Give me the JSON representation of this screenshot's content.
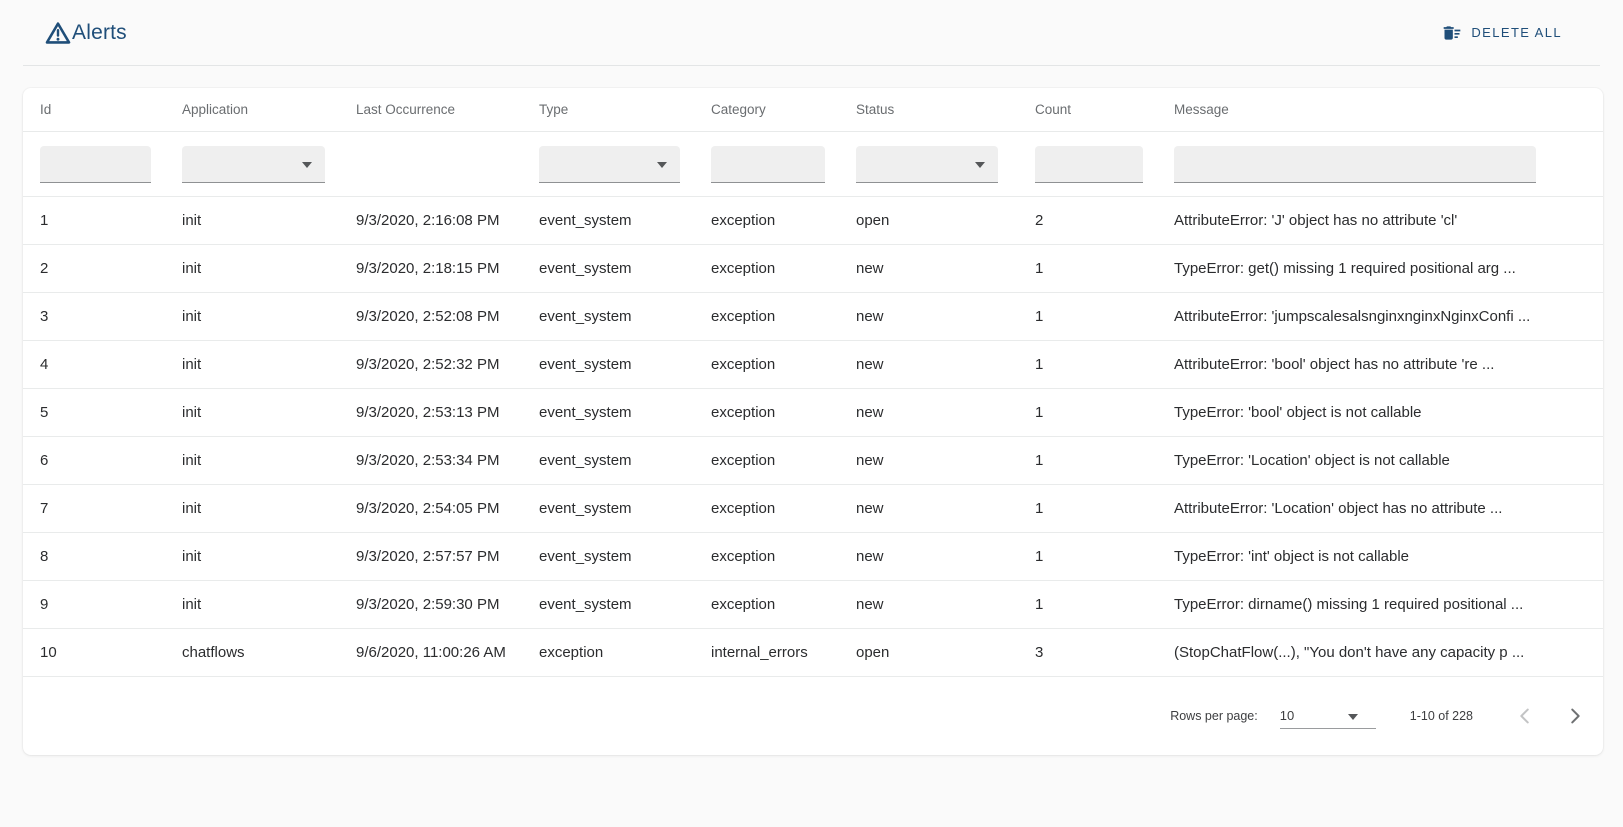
{
  "header": {
    "title": "Alerts",
    "delete_all_label": "DELETE ALL"
  },
  "icons": {
    "header_icon": "warning-triangle",
    "delete_icon": "delete-sweep",
    "filter_dropdown_icon": "caret-down",
    "prev_icon": "chevron-left",
    "next_icon": "chevron-right"
  },
  "colors": {
    "accent": "#1F4E79",
    "page_bg": "#FAFAFA",
    "card_bg": "#FFFFFF",
    "divider": "#E9EBEB",
    "filter_bg": "#EFEFEF",
    "text_primary": "#2B2C2E",
    "text_secondary": "#6A6D70",
    "disabled_icon": "#C3C4C5"
  },
  "table": {
    "columns": [
      {
        "key": "id",
        "label": "Id",
        "filter": "text"
      },
      {
        "key": "application",
        "label": "Application",
        "filter": "select"
      },
      {
        "key": "last_occurrence",
        "label": "Last Occurrence",
        "filter": "none"
      },
      {
        "key": "type",
        "label": "Type",
        "filter": "select"
      },
      {
        "key": "category",
        "label": "Category",
        "filter": "text"
      },
      {
        "key": "status",
        "label": "Status",
        "filter": "select"
      },
      {
        "key": "count",
        "label": "Count",
        "filter": "text"
      },
      {
        "key": "message",
        "label": "Message",
        "filter": "text"
      }
    ],
    "rows": [
      {
        "id": "1",
        "application": "init",
        "last_occurrence": "9/3/2020, 2:16:08 PM",
        "type": "event_system",
        "category": "exception",
        "status": "open",
        "count": "2",
        "message": "AttributeError: 'J' object has no attribute 'cl'"
      },
      {
        "id": "2",
        "application": "init",
        "last_occurrence": "9/3/2020, 2:18:15 PM",
        "type": "event_system",
        "category": "exception",
        "status": "new",
        "count": "1",
        "message": "TypeError: get() missing 1 required positional arg ..."
      },
      {
        "id": "3",
        "application": "init",
        "last_occurrence": "9/3/2020, 2:52:08 PM",
        "type": "event_system",
        "category": "exception",
        "status": "new",
        "count": "1",
        "message": "AttributeError: 'jumpscalesalsnginxnginxNginxConfi ..."
      },
      {
        "id": "4",
        "application": "init",
        "last_occurrence": "9/3/2020, 2:52:32 PM",
        "type": "event_system",
        "category": "exception",
        "status": "new",
        "count": "1",
        "message": "AttributeError: 'bool' object has no attribute 're ..."
      },
      {
        "id": "5",
        "application": "init",
        "last_occurrence": "9/3/2020, 2:53:13 PM",
        "type": "event_system",
        "category": "exception",
        "status": "new",
        "count": "1",
        "message": "TypeError: 'bool' object is not callable"
      },
      {
        "id": "6",
        "application": "init",
        "last_occurrence": "9/3/2020, 2:53:34 PM",
        "type": "event_system",
        "category": "exception",
        "status": "new",
        "count": "1",
        "message": "TypeError: 'Location' object is not callable"
      },
      {
        "id": "7",
        "application": "init",
        "last_occurrence": "9/3/2020, 2:54:05 PM",
        "type": "event_system",
        "category": "exception",
        "status": "new",
        "count": "1",
        "message": "AttributeError: 'Location' object has no attribute ..."
      },
      {
        "id": "8",
        "application": "init",
        "last_occurrence": "9/3/2020, 2:57:57 PM",
        "type": "event_system",
        "category": "exception",
        "status": "new",
        "count": "1",
        "message": "TypeError: 'int' object is not callable"
      },
      {
        "id": "9",
        "application": "init",
        "last_occurrence": "9/3/2020, 2:59:30 PM",
        "type": "event_system",
        "category": "exception",
        "status": "new",
        "count": "1",
        "message": "TypeError: dirname() missing 1 required positional ..."
      },
      {
        "id": "10",
        "application": "chatflows",
        "last_occurrence": "9/6/2020, 11:00:26 AM",
        "type": "exception",
        "category": "internal_errors",
        "status": "open",
        "count": "3",
        "message": "(StopChatFlow(...), \"You don't have any capacity p ..."
      }
    ]
  },
  "pagination": {
    "rows_per_page_label": "Rows per page:",
    "rows_per_page_value": "10",
    "range_label": "1-10 of 228"
  }
}
